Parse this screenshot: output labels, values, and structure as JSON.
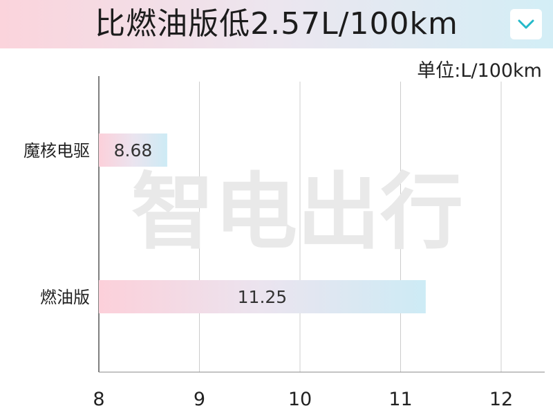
{
  "header": {
    "title": "比燃油版低2.57L/100km",
    "dropdown_icon": "chevron-down-icon"
  },
  "unit_label": "单位:L/100km",
  "watermark": "智电出行",
  "colors": {
    "bar_start": "#fcd0da",
    "bar_end": "#cdebf5",
    "accent": "#23b9c9",
    "grid": "#cccccc"
  },
  "chart_data": {
    "type": "bar",
    "orientation": "horizontal",
    "categories": [
      "魔核电驱",
      "燃油版"
    ],
    "values": [
      8.68,
      11.25
    ],
    "xlim": [
      8,
      12
    ],
    "xticks": [
      8,
      9,
      10,
      11,
      12
    ],
    "unit": "单位:L/100km",
    "grid": true
  }
}
